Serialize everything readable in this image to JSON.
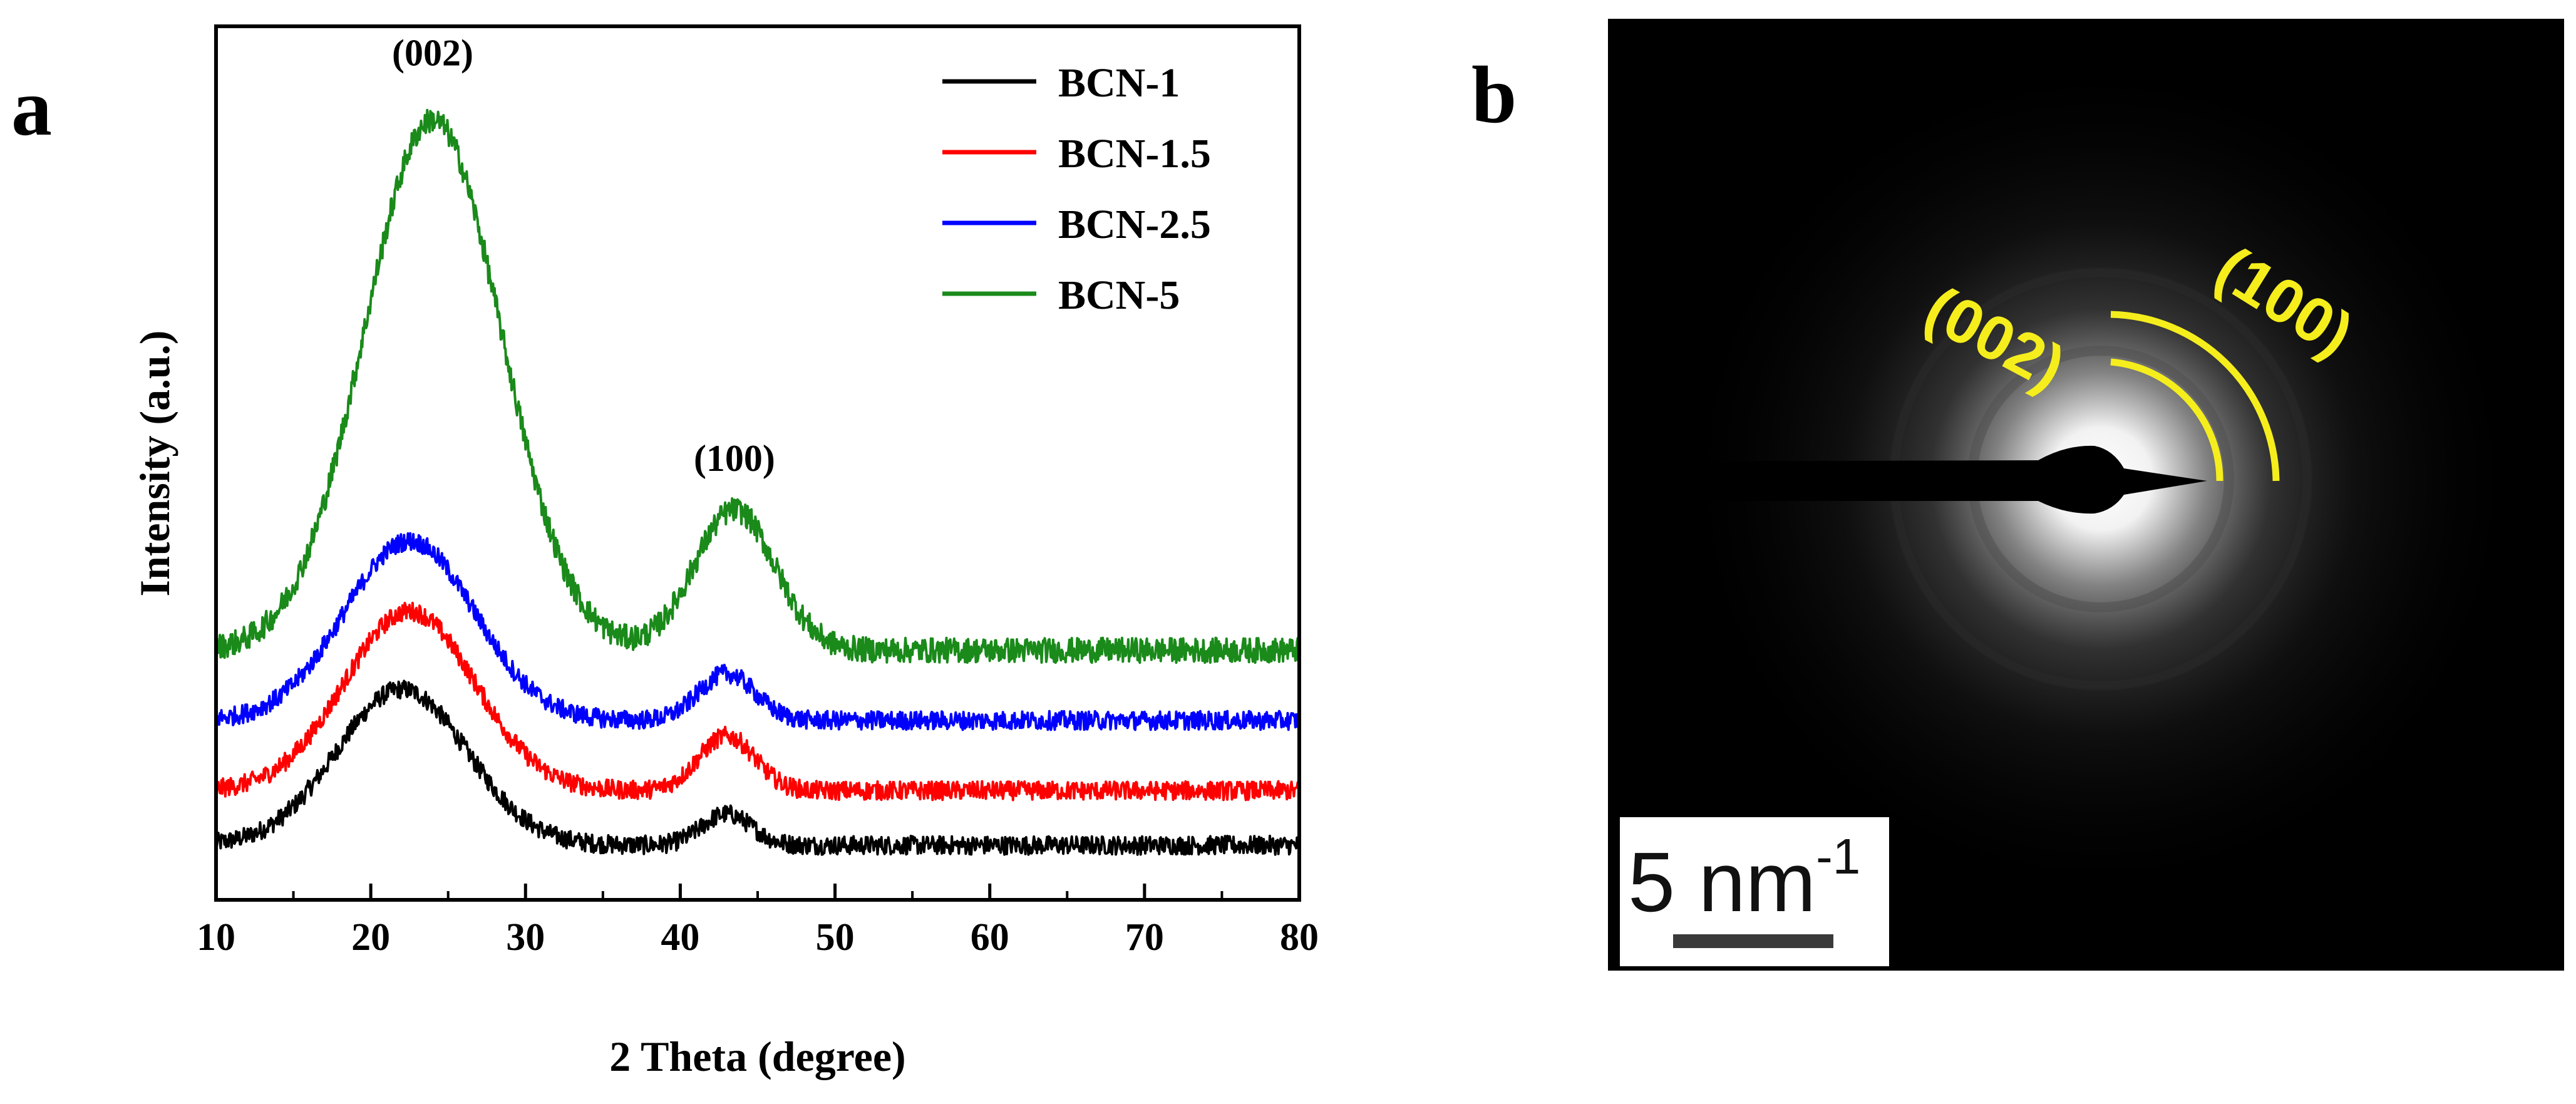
{
  "colors": {
    "BCN-1": "#000000",
    "BCN-1.5": "#ff0000",
    "BCN-2.5": "#0000ff",
    "BCN-5": "#1a8a1a",
    "annotation_yellow": "#f5ee1c"
  },
  "chart_data": [
    {
      "panel_label": "a",
      "type": "line",
      "title": "",
      "xlabel": "2 Theta (degree)",
      "ylabel": "Intensity (a.u.)",
      "xlim": [
        10,
        80
      ],
      "ylim": [
        0,
        1.12
      ],
      "xticks": [
        10,
        20,
        30,
        40,
        50,
        60,
        70,
        80
      ],
      "yticks_shown": false,
      "legend_position": "top-right",
      "annotations": [
        {
          "text": "(002)",
          "x": 24,
          "y": 1.07
        },
        {
          "text": "(100)",
          "x": 43.5,
          "y": 0.55
        }
      ],
      "series": [
        {
          "name": "BCN-1",
          "color": "#000000",
          "baseline": 0.07,
          "peaks": [
            {
              "center": 22,
              "width": 4.2,
              "height": 0.2
            },
            {
              "center": 43,
              "width": 1.6,
              "height": 0.04
            }
          ],
          "noise": 0.012
        },
        {
          "name": "BCN-1.5",
          "color": "#ff0000",
          "baseline": 0.14,
          "peaks": [
            {
              "center": 22.5,
              "width": 4.2,
              "height": 0.23
            },
            {
              "center": 43,
              "width": 1.8,
              "height": 0.07
            }
          ],
          "noise": 0.012
        },
        {
          "name": "BCN-2.5",
          "color": "#0000ff",
          "baseline": 0.23,
          "peaks": [
            {
              "center": 22.5,
              "width": 4.2,
              "height": 0.23
            },
            {
              "center": 43,
              "width": 1.8,
              "height": 0.06
            }
          ],
          "noise": 0.012
        },
        {
          "name": "BCN-5",
          "color": "#1a8a1a",
          "baseline": 0.32,
          "peaks": [
            {
              "center": 24,
              "width": 4.4,
              "height": 0.68
            },
            {
              "center": 43.5,
              "width": 2.6,
              "height": 0.18
            }
          ],
          "noise": 0.016
        }
      ]
    },
    {
      "panel_label": "b",
      "type": "other",
      "description_type": "SAED pattern",
      "ring_labels": [
        "(002)",
        "(100)"
      ],
      "scale_bar_text": "5 nm",
      "scale_bar_exponent": "-1"
    }
  ]
}
